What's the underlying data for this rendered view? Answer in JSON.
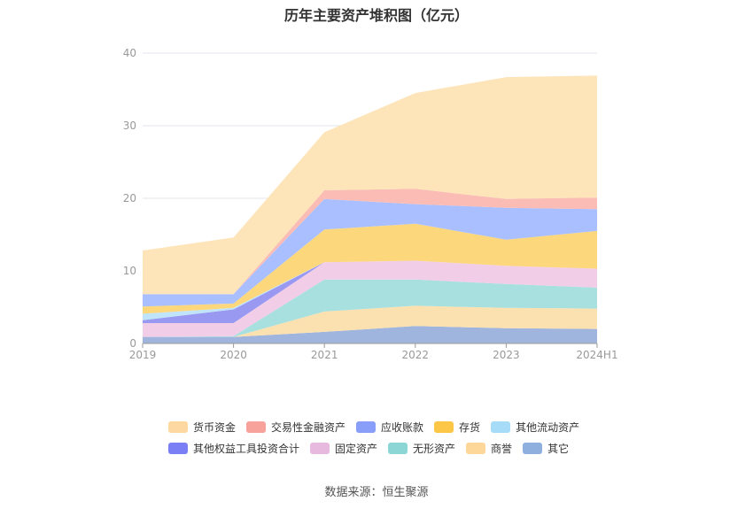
{
  "chart_data": {
    "type": "area",
    "title": "历年主要资产堆积图（亿元）",
    "categories": [
      "2019",
      "2020",
      "2021",
      "2022",
      "2023",
      "2024H1"
    ],
    "ylim": [
      0,
      40
    ],
    "yticks": [
      0,
      10,
      20,
      30,
      40
    ],
    "grid": true,
    "legend_position": "bottom",
    "series": [
      {
        "name": "其它",
        "color": "#9fb5de",
        "values": [
          0.9,
          0.9,
          1.6,
          2.4,
          2.1,
          2.0
        ]
      },
      {
        "name": "商誉",
        "color": "#fce1b0",
        "values": [
          0.0,
          0.0,
          2.8,
          2.8,
          2.8,
          2.8
        ]
      },
      {
        "name": "无形资产",
        "color": "#a8e0e0",
        "values": [
          0.0,
          0.1,
          4.4,
          3.6,
          3.3,
          2.9
        ]
      },
      {
        "name": "固定资产",
        "color": "#f1cde7",
        "values": [
          1.9,
          1.8,
          2.4,
          2.6,
          2.5,
          2.6
        ]
      },
      {
        "name": "其他权益工具投资合计",
        "color": "#9a99f2",
        "values": [
          0.4,
          1.9,
          0.0,
          0.0,
          0.0,
          0.0
        ]
      },
      {
        "name": "其他流动资产",
        "color": "#c0e4fa",
        "values": [
          0.9,
          0.2,
          0.0,
          0.0,
          0.0,
          0.0
        ]
      },
      {
        "name": "存货",
        "color": "#fdd77c",
        "values": [
          1.0,
          0.6,
          4.5,
          5.1,
          3.6,
          5.2
        ]
      },
      {
        "name": "应收账款",
        "color": "#aabfff",
        "values": [
          1.7,
          1.3,
          4.2,
          2.7,
          4.4,
          3.0
        ]
      },
      {
        "name": "交易性金融资产",
        "color": "#fbbcb5",
        "values": [
          0.0,
          0.0,
          1.2,
          2.1,
          1.2,
          1.6
        ]
      },
      {
        "name": "货币资金",
        "color": "#fde4b9",
        "values": [
          6.0,
          7.8,
          8.0,
          13.2,
          16.8,
          16.8
        ]
      }
    ],
    "legend": [
      {
        "name": "货币资金",
        "color": "#fdd8a0"
      },
      {
        "name": "交易性金融资产",
        "color": "#f7a39b"
      },
      {
        "name": "应收账款",
        "color": "#889ef8"
      },
      {
        "name": "存货",
        "color": "#fcc647"
      },
      {
        "name": "其他流动资产",
        "color": "#a6dcf8"
      },
      {
        "name": "其他权益工具投资合计",
        "color": "#7b7ff5"
      },
      {
        "name": "固定资产",
        "color": "#e8b9de"
      },
      {
        "name": "无形资产",
        "color": "#8cd6d6"
      },
      {
        "name": "商誉",
        "color": "#fdd79a"
      },
      {
        "name": "其它",
        "color": "#8fb0df"
      }
    ]
  },
  "source": "数据来源：恒生聚源"
}
